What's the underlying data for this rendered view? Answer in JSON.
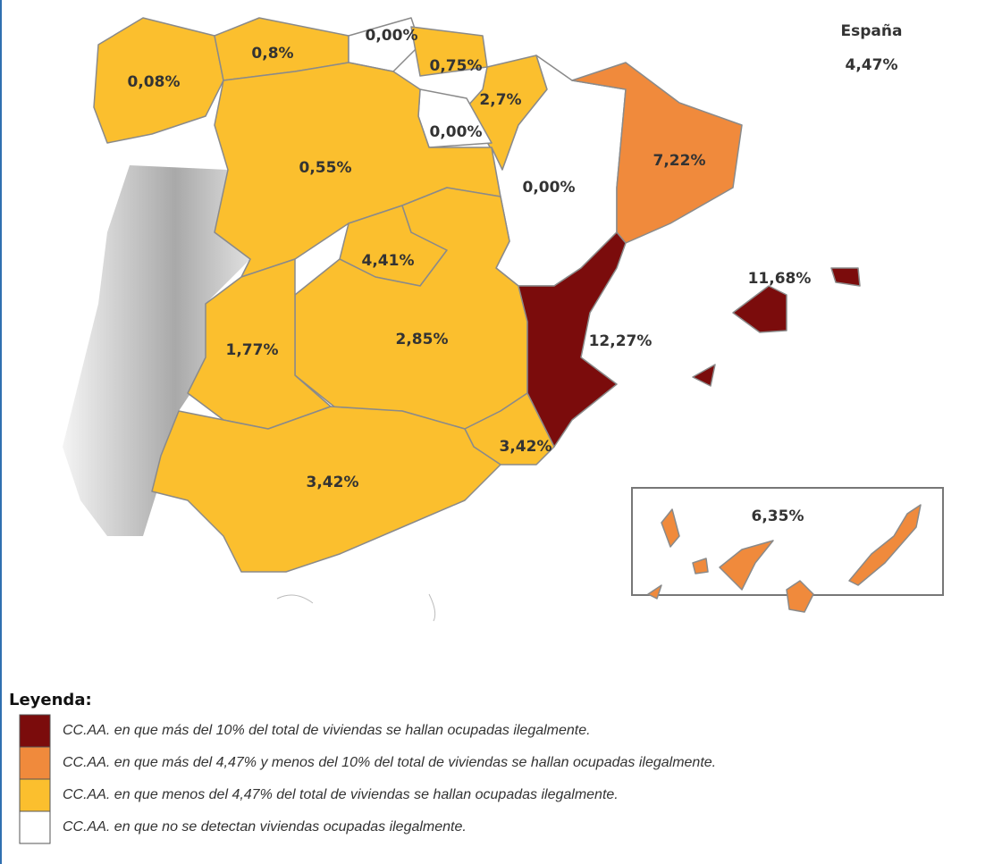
{
  "map": {
    "national": {
      "title": "España",
      "value": "4,47%"
    },
    "regions": [
      {
        "name": "Galicia",
        "label": "0,08%",
        "color": "#fbbf2e"
      },
      {
        "name": "Asturias",
        "label": "0,8%",
        "color": "#fbbf2e"
      },
      {
        "name": "Cantabria",
        "label": "0,00%",
        "color": "#ffffff"
      },
      {
        "name": "País Vasco",
        "label": "0,75%",
        "color": "#fbbf2e"
      },
      {
        "name": "Navarra",
        "label": "2,7%",
        "color": "#fbbf2e"
      },
      {
        "name": "La Rioja",
        "label": "0,00%",
        "color": "#ffffff"
      },
      {
        "name": "Castilla y León",
        "label": "0,55%",
        "color": "#fbbf2e"
      },
      {
        "name": "Aragón",
        "label": "0,00%",
        "color": "#ffffff"
      },
      {
        "name": "Cataluña",
        "label": "7,22%",
        "color": "#f08a3c"
      },
      {
        "name": "Madrid",
        "label": "4,41%",
        "color": "#fbbf2e"
      },
      {
        "name": "Castilla-La Mancha",
        "label": "2,85%",
        "color": "#fbbf2e"
      },
      {
        "name": "Extremadura",
        "label": "1,77%",
        "color": "#fbbf2e"
      },
      {
        "name": "Comunidad Valenciana",
        "label": "12,27%",
        "color": "#7b0c0c"
      },
      {
        "name": "Murcia",
        "label": "3,42%",
        "color": "#fbbf2e"
      },
      {
        "name": "Andalucía",
        "label": "3,42%",
        "color": "#fbbf2e"
      },
      {
        "name": "Baleares",
        "label": "11,68%",
        "color": "#7b0c0c"
      },
      {
        "name": "Canarias",
        "label": "6,35%",
        "color": "#f08a3c"
      }
    ]
  },
  "legend": {
    "title": "Leyenda:",
    "items": [
      {
        "color": "#7b0c0c",
        "text": "CC.AA. en que más del 10% del total de viviendas se hallan ocupadas ilegalmente."
      },
      {
        "color": "#f08a3c",
        "text": "CC.AA. en que más del 4,47% y menos del 10% del total de viviendas se hallan ocupadas ilegalmente."
      },
      {
        "color": "#fbbf2e",
        "text": "CC.AA. en que menos del 4,47% del total de viviendas se hallan ocupadas ilegalmente."
      },
      {
        "color": "#ffffff",
        "text": "CC.AA. en que no se detectan viviendas ocupadas ilegalmente."
      }
    ]
  }
}
